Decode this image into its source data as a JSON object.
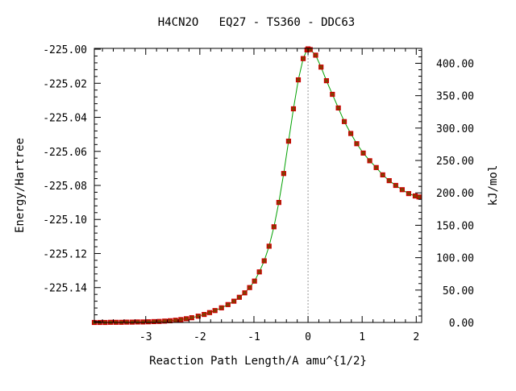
{
  "chart_data": {
    "type": "line",
    "title": "H4CN2O   EQ27 - TS360 - DDC63",
    "xlabel": "Reaction Path Length/A amu^{1/2}",
    "ylabel": "Energy/Hartree",
    "y2label": "kJ/mol",
    "xlim": [
      -3.95,
      2.1
    ],
    "ylim": [
      -225.1605,
      -224.9995
    ],
    "y2lim": [
      0,
      423
    ],
    "x_ticks": [
      -3,
      -2,
      -1,
      0,
      1,
      2
    ],
    "x_tick_labels": [
      "-3",
      "-2",
      "-1",
      "0",
      "1",
      "2"
    ],
    "y_ticks": [
      -225.14,
      -225.12,
      -225.1,
      -225.08,
      -225.06,
      -225.04,
      -225.02,
      -225.0
    ],
    "y_tick_labels": [
      "-225.14",
      "-225.12",
      "-225.10",
      "-225.08",
      "-225.06",
      "-225.04",
      "-225.02",
      "-225.00"
    ],
    "y2_ticks": [
      0,
      50,
      100,
      150,
      200,
      250,
      300,
      350,
      400
    ],
    "y2_tick_labels": [
      "0.00",
      "50.00",
      "100.00",
      "150.00",
      "200.00",
      "250.00",
      "300.00",
      "350.00",
      "400.00"
    ],
    "ts_line_x": 0,
    "grid": false,
    "colors": {
      "line": "#00a000",
      "marker_edge": "#cc0000",
      "marker_fill": "#804000",
      "ts_line": "#999999",
      "axis": "#000000"
    },
    "series": [
      {
        "x": [
          -3.95,
          -3.85,
          -3.75,
          -3.65,
          -3.55,
          -3.45,
          -3.35,
          -3.25,
          -3.15,
          -3.05,
          -2.95,
          -2.85,
          -2.75,
          -2.65,
          -2.55,
          -2.45,
          -2.35,
          -2.25,
          -2.15,
          -2.03,
          -1.92,
          -1.82,
          -1.72,
          -1.6,
          -1.48,
          -1.37,
          -1.27,
          -1.17,
          -1.08,
          -0.99,
          -0.9,
          -0.81,
          -0.72,
          -0.63,
          -0.54,
          -0.45,
          -0.36,
          -0.27,
          -0.18,
          -0.09,
          -0.02,
          0.0,
          0.04,
          0.14,
          0.24,
          0.34,
          0.45,
          0.56,
          0.67,
          0.79,
          0.9,
          1.02,
          1.14,
          1.26,
          1.38,
          1.5,
          1.62,
          1.74,
          1.86,
          1.98,
          2.05
        ],
        "y": [
          -225.1605,
          -225.1605,
          -225.1605,
          -225.1604,
          -225.1604,
          -225.1604,
          -225.1603,
          -225.1603,
          -225.1602,
          -225.1602,
          -225.1601,
          -225.16,
          -225.1599,
          -225.1597,
          -225.1595,
          -225.1592,
          -225.1588,
          -225.1583,
          -225.1577,
          -225.1568,
          -225.1558,
          -225.1547,
          -225.1535,
          -225.1519,
          -225.15,
          -225.148,
          -225.1457,
          -225.1431,
          -225.14,
          -225.1362,
          -225.1308,
          -225.1243,
          -225.1157,
          -225.1043,
          -225.09,
          -225.073,
          -225.054,
          -225.035,
          -225.018,
          -225.0055,
          -225.0004,
          -224.9998,
          -225.0002,
          -225.0035,
          -225.0105,
          -225.0185,
          -225.0265,
          -225.0345,
          -225.0425,
          -225.0495,
          -225.0555,
          -225.061,
          -225.0655,
          -225.0695,
          -225.0738,
          -225.0772,
          -225.08,
          -225.0825,
          -225.0848,
          -225.0862,
          -225.0868
        ]
      }
    ]
  }
}
